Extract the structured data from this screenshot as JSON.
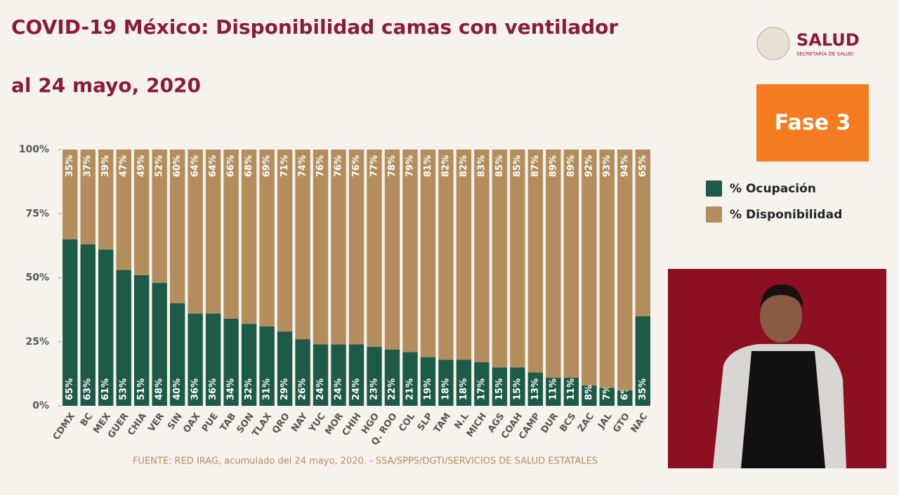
{
  "chart_data": {
    "type": "stacked-bar",
    "title": "COVID-19 México: Disponibilidad camas con ventilador",
    "subtitle": "al 24 mayo, 2020",
    "categories": [
      "CDMX",
      "BC",
      "MEX",
      "GUER",
      "CHIA",
      "VER",
      "SIN",
      "OAX",
      "PUE",
      "TAB",
      "SON",
      "TLAX",
      "QRO",
      "NAY",
      "YUC",
      "MOR",
      "CHIH",
      "HGO",
      "Q. ROO",
      "COL",
      "SLP",
      "TAM",
      "N.L",
      "MICH",
      "AGS",
      "COAH",
      "CAMP",
      "DUR",
      "BCS",
      "ZAC",
      "JAL",
      "GTO",
      "NAC"
    ],
    "series": [
      {
        "name": "% Ocupación",
        "color": "#1e5a48",
        "values": [
          65,
          63,
          61,
          53,
          51,
          48,
          40,
          36,
          36,
          34,
          32,
          31,
          29,
          26,
          24,
          24,
          24,
          23,
          22,
          21,
          19,
          18,
          18,
          17,
          15,
          15,
          13,
          11,
          11,
          8,
          7,
          6,
          35
        ],
        "value_labels": [
          "65%",
          "63%",
          "61%",
          "53%",
          "51%",
          "48%",
          "40%",
          "36%",
          "36%",
          "34%",
          "32%",
          "31%",
          "29%",
          "26%",
          "24%",
          "24%",
          "24%",
          "23%",
          "22%",
          "21%",
          "19%",
          "18%",
          "18%",
          "17%",
          "15%",
          "15%",
          "13%",
          "11%",
          "11%",
          "8%",
          "7%",
          "6%",
          "35%"
        ]
      },
      {
        "name": "% Disponibilidad",
        "color": "#b38d5c",
        "values": [
          35,
          37,
          39,
          47,
          49,
          52,
          60,
          64,
          64,
          66,
          68,
          69,
          71,
          74,
          76,
          76,
          76,
          77,
          78,
          79,
          81,
          82,
          82,
          83,
          85,
          85,
          87,
          89,
          89,
          92,
          93,
          94,
          65
        ],
        "value_labels": [
          "35%",
          "37%",
          "39%",
          "47%",
          "49%",
          "52%",
          "60%",
          "64%",
          "64%",
          "66%",
          "68%",
          "69%",
          "71%",
          "74%",
          "76%",
          "76%",
          "76%",
          "77%",
          "78%",
          "79%",
          "81%",
          "82%",
          "82%",
          "83%",
          "85%",
          "85%",
          "87%",
          "89%",
          "89%",
          "92%",
          "93%",
          "94%",
          "65%"
        ]
      }
    ],
    "ylim": [
      0,
      100
    ],
    "yticks": [
      {
        "value": 0,
        "label": "0%"
      },
      {
        "value": 25,
        "label": "25%"
      },
      {
        "value": 50,
        "label": "50%"
      },
      {
        "value": 75,
        "label": "75%"
      },
      {
        "value": 100,
        "label": "100%"
      }
    ],
    "source": "FUENTE: RED IRAG, acumulado del 24 mayo, 2020.  -  SSA/SPPS/DGTI/SERVICIOS DE SALUD ESTATALES"
  },
  "logo": {
    "title": "SALUD",
    "subtitle": "SECRETARÍA DE SALUD"
  },
  "phase": "Fase 3"
}
